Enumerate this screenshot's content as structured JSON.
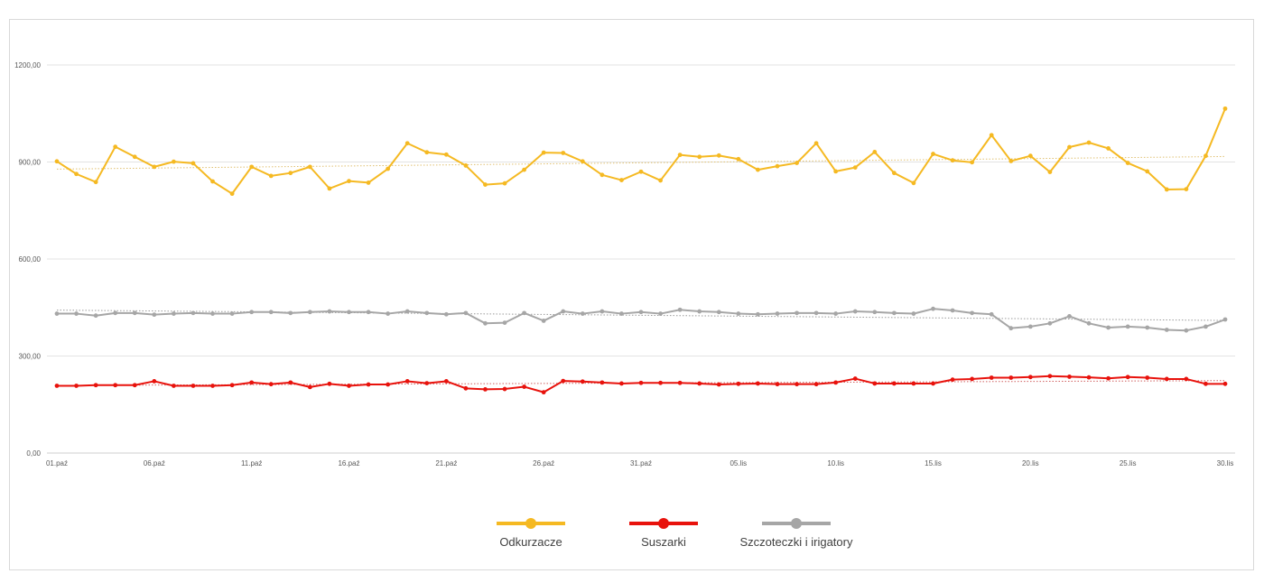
{
  "chart_data": {
    "type": "line",
    "title": "",
    "xlabel": "",
    "ylabel": "",
    "ylim": [
      0,
      1200
    ],
    "yticks": [
      0,
      300,
      600,
      900,
      1200
    ],
    "ytick_labels": [
      "0,00",
      "300,00",
      "600,00",
      "900,00",
      "1200,00"
    ],
    "xtick_labels": [
      "01.paź",
      "06.paź",
      "11.paź",
      "16.paź",
      "21.paź",
      "26.paź",
      "31.paź",
      "05.lis",
      "10.lis",
      "15.lis",
      "20.lis",
      "25.lis",
      "30.lis"
    ],
    "xtick_every": 5,
    "grid": "horizontal",
    "legend_position": "bottom",
    "trendlines": true,
    "series": [
      {
        "name": "Odkurzacze",
        "color": "#f5b922",
        "values": [
          902,
          863,
          838,
          947,
          916,
          885,
          901,
          896,
          840,
          802,
          885,
          857,
          866,
          885,
          818,
          841,
          836,
          879,
          958,
          930,
          923,
          889,
          830,
          834,
          876,
          929,
          928,
          902,
          860,
          844,
          870,
          843,
          922,
          916,
          920,
          909,
          876,
          887,
          897,
          958,
          871,
          883,
          931,
          866,
          835,
          925,
          905,
          899,
          983,
          903,
          919,
          869,
          946,
          960,
          942,
          897,
          871,
          815,
          816,
          919,
          1065
        ],
        "trend": [
          878,
          917
        ]
      },
      {
        "name": "Suszarki",
        "color": "#e8120c",
        "values": [
          208,
          208,
          210,
          210,
          210,
          222,
          208,
          208,
          208,
          210,
          218,
          213,
          218,
          204,
          214,
          208,
          212,
          212,
          222,
          216,
          222,
          200,
          197,
          198,
          205,
          188,
          223,
          221,
          218,
          215,
          217,
          217,
          217,
          215,
          212,
          214,
          215,
          213,
          213,
          213,
          218,
          230,
          215,
          215,
          215,
          215,
          227,
          229,
          233,
          233,
          235,
          238,
          236,
          234,
          231,
          235,
          233,
          229,
          229,
          214,
          214
        ],
        "trend": [
          209,
          224
        ]
      },
      {
        "name": "Szczoteczki i irigatory",
        "color": "#a6a6a6",
        "values": [
          431,
          431,
          425,
          433,
          433,
          428,
          431,
          433,
          431,
          431,
          436,
          436,
          433,
          436,
          438,
          436,
          436,
          431,
          438,
          433,
          429,
          433,
          401,
          403,
          433,
          409,
          438,
          431,
          438,
          431,
          436,
          431,
          443,
          438,
          436,
          431,
          429,
          431,
          433,
          433,
          431,
          438,
          436,
          433,
          431,
          446,
          441,
          433,
          429,
          386,
          391,
          401,
          423,
          401,
          388,
          391,
          388,
          381,
          379,
          391,
          413
        ],
        "trend": [
          442,
          410
        ]
      }
    ]
  }
}
